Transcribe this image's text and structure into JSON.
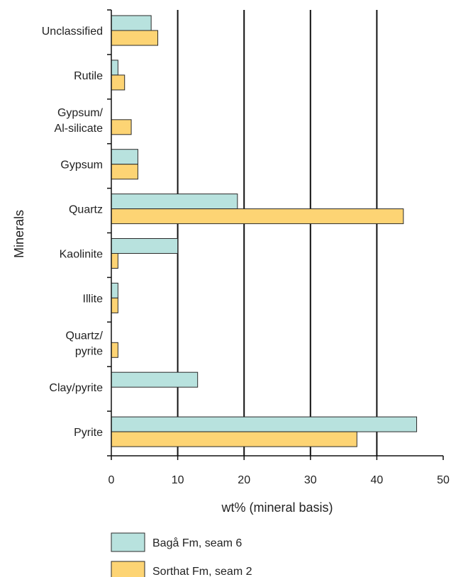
{
  "chart_data": {
    "type": "bar",
    "orientation": "horizontal",
    "xlabel": "wt% (mineral basis)",
    "ylabel": "Minerals",
    "xlim": [
      0,
      50
    ],
    "xticks": [
      "0",
      "10",
      "20",
      "30",
      "40",
      "50"
    ],
    "grid": "vertical lines at 10, 20, 30, 40",
    "legend_position": "bottom-left",
    "categories": [
      [
        "Unclassified"
      ],
      [
        "Rutile"
      ],
      [
        "Gypsum/",
        "Al-silicate"
      ],
      [
        "Gypsum"
      ],
      [
        "Quartz"
      ],
      [
        "Kaolinite"
      ],
      [
        "Illite"
      ],
      [
        "Quartz/",
        "pyrite"
      ],
      [
        "Clay/pyrite"
      ],
      [
        "Pyrite"
      ]
    ],
    "series": [
      {
        "name": "Bagå Fm, seam 6",
        "color": "#b8e2de",
        "values": [
          6,
          1,
          0,
          4,
          19,
          10,
          1,
          0,
          13,
          46
        ]
      },
      {
        "name": "Sorthat Fm, seam 2",
        "color": "#fdd474",
        "values": [
          7,
          2,
          3,
          4,
          44,
          1,
          1,
          1,
          0,
          37
        ]
      }
    ]
  }
}
